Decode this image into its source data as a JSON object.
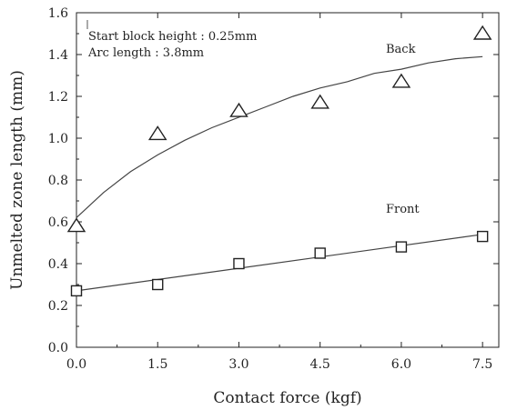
{
  "chart_data": {
    "type": "scatter",
    "xlabel": "Contact force (kgf)",
    "ylabel": "Unmelted zone length (mm)",
    "xlim": [
      0,
      7.8
    ],
    "ylim": [
      0,
      1.6
    ],
    "x_ticks": [
      "0.0",
      "1.5",
      "3.0",
      "4.5",
      "6.0",
      "7.5"
    ],
    "y_ticks": [
      "0.0",
      "0.2",
      "0.4",
      "0.6",
      "0.8",
      "1.0",
      "1.2",
      "1.4",
      "1.6"
    ],
    "annotations": [
      "Start block height : 0.25mm",
      "Arc length : 3.8mm"
    ],
    "grid": false,
    "series": [
      {
        "name": "Back",
        "marker": "triangle",
        "x": [
          0.0,
          1.5,
          3.0,
          4.5,
          6.0,
          7.5
        ],
        "y": [
          0.58,
          1.02,
          1.13,
          1.17,
          1.27,
          1.5
        ],
        "fit": {
          "x": [
            0.0,
            0.5,
            1.0,
            1.5,
            2.0,
            2.5,
            3.0,
            3.5,
            4.0,
            4.5,
            5.0,
            5.5,
            6.0,
            6.5,
            7.0,
            7.5
          ],
          "y": [
            0.62,
            0.74,
            0.84,
            0.92,
            0.99,
            1.05,
            1.1,
            1.15,
            1.2,
            1.24,
            1.27,
            1.31,
            1.33,
            1.36,
            1.38,
            1.39
          ]
        }
      },
      {
        "name": "Front",
        "marker": "square",
        "x": [
          0.0,
          1.5,
          3.0,
          4.5,
          6.0,
          7.5
        ],
        "y": [
          0.27,
          0.3,
          0.4,
          0.45,
          0.48,
          0.53
        ],
        "fit": {
          "x": [
            0.0,
            7.5
          ],
          "y": [
            0.27,
            0.54
          ]
        }
      }
    ]
  }
}
